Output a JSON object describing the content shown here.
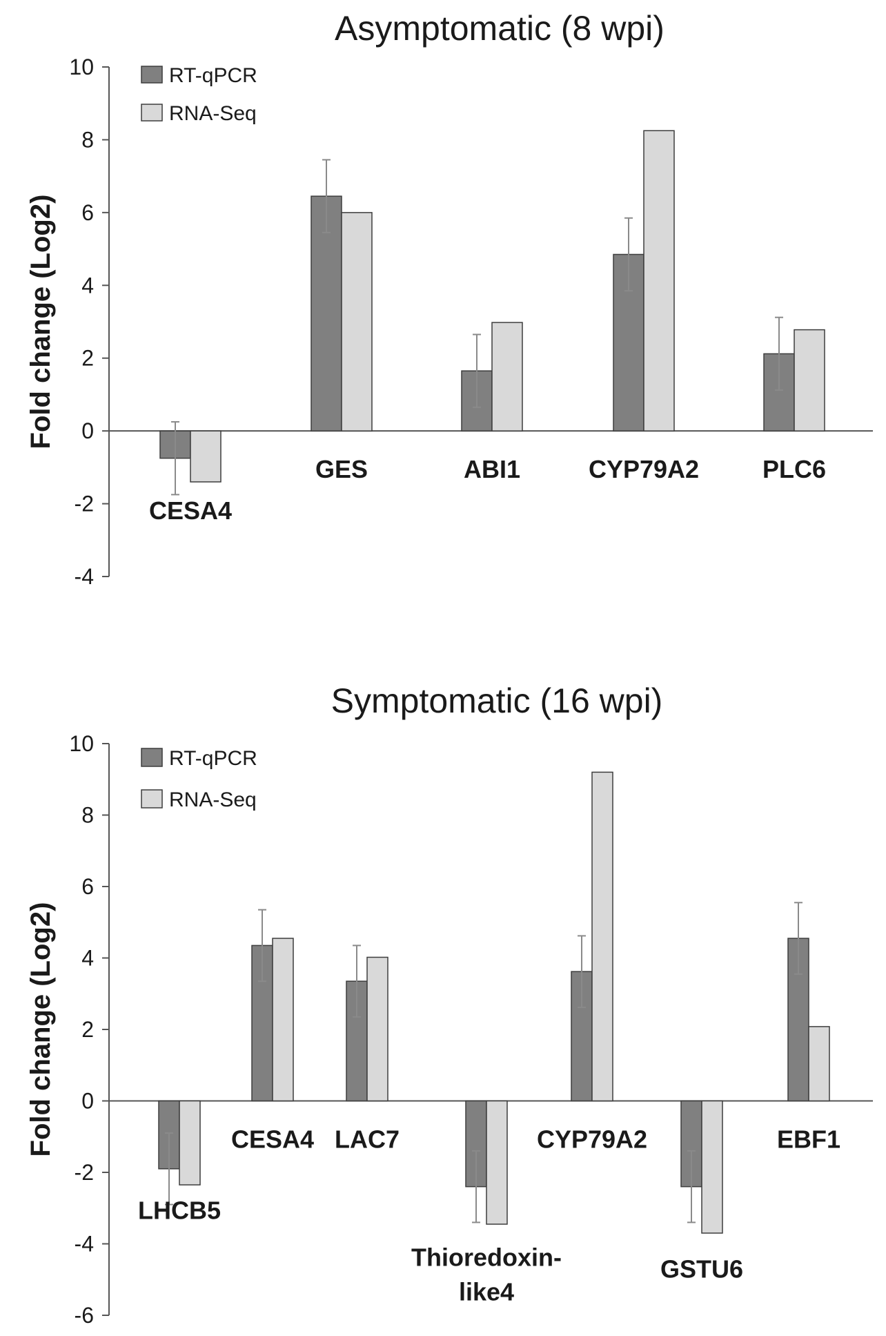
{
  "chart_data": [
    {
      "type": "bar",
      "title": "Asymptomatic (8 wpi)",
      "xlabel": "",
      "ylabel": "Fold change (Log2)",
      "ylim": [
        -4,
        10
      ],
      "yticks": [
        -4,
        -2,
        0,
        2,
        4,
        6,
        8,
        10
      ],
      "categories": [
        "CESA4",
        "GES",
        "ABI1",
        "CYP79A2",
        "PLC6"
      ],
      "category_labels": [
        [
          "CESA4"
        ],
        [
          "GES"
        ],
        [
          "ABI1"
        ],
        [
          "CYP79A2"
        ],
        [
          "PLC6"
        ]
      ],
      "series": [
        {
          "name": "RT-qPCR",
          "color": "#808080",
          "values": [
            -0.75,
            6.45,
            1.65,
            4.85,
            2.12
          ],
          "errors": [
            1.0,
            1.0,
            1.0,
            1.0,
            1.0
          ]
        },
        {
          "name": "RNA-Seq",
          "color": "#d9d9d9",
          "values": [
            -1.4,
            6.0,
            2.98,
            8.25,
            2.78
          ]
        }
      ],
      "legend": "top-left"
    },
    {
      "type": "bar",
      "title": "Symptomatic (16 wpi)",
      "xlabel": "",
      "ylabel": "Fold change (Log2)",
      "ylim": [
        -6,
        10
      ],
      "yticks": [
        -6,
        -4,
        -2,
        0,
        2,
        4,
        6,
        8,
        10
      ],
      "categories": [
        "LHCB5",
        "CESA4",
        "LAC7",
        "Thioredoxin-like4",
        "CYP79A2",
        "GSTU6",
        "EBF1"
      ],
      "category_labels": [
        [
          "LHCB5"
        ],
        [
          "CESA4"
        ],
        [
          "LAC7"
        ],
        [
          "Thioredoxin-",
          "like4"
        ],
        [
          "CYP79A2"
        ],
        [
          "GSTU6"
        ],
        [
          "EBF1"
        ]
      ],
      "series": [
        {
          "name": "RT-qPCR",
          "color": "#808080",
          "values": [
            -1.9,
            4.35,
            3.35,
            -2.4,
            3.62,
            -2.4,
            4.55
          ],
          "errors": [
            1.0,
            1.0,
            1.0,
            1.0,
            1.0,
            1.0,
            1.0
          ]
        },
        {
          "name": "RNA-Seq",
          "color": "#d9d9d9",
          "values": [
            -2.35,
            4.55,
            4.02,
            -3.45,
            9.2,
            -3.7,
            2.08
          ]
        }
      ],
      "legend": "top-left"
    }
  ]
}
